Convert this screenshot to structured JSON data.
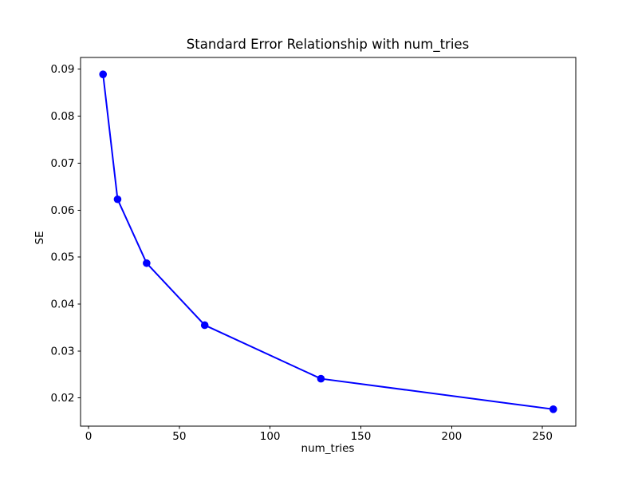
{
  "chart_data": {
    "type": "line",
    "title": "Standard Error Relationship with num_tries",
    "xlabel": "num_tries",
    "ylabel": "SE",
    "x": [
      8,
      16,
      32,
      64,
      128,
      256
    ],
    "y": [
      0.0889,
      0.0623,
      0.0487,
      0.0355,
      0.0241,
      0.0176
    ],
    "xticks": {
      "values": [
        0,
        50,
        100,
        150,
        200,
        250
      ],
      "labels": [
        "0",
        "50",
        "100",
        "150",
        "200",
        "250"
      ]
    },
    "yticks": {
      "values": [
        0.02,
        0.03,
        0.04,
        0.05,
        0.06,
        0.07,
        0.08,
        0.09
      ],
      "labels": [
        "0.02",
        "0.03",
        "0.04",
        "0.05",
        "0.06",
        "0.07",
        "0.08",
        "0.09"
      ]
    },
    "xlim": [
      -4.4,
      268.4
    ],
    "ylim": [
      0.014,
      0.0925
    ],
    "grid": false,
    "legend": "none",
    "line_color": "#0000ff",
    "marker": "circle",
    "spine_color": "#000000",
    "text_color": "#000000",
    "background": "#ffffff"
  }
}
